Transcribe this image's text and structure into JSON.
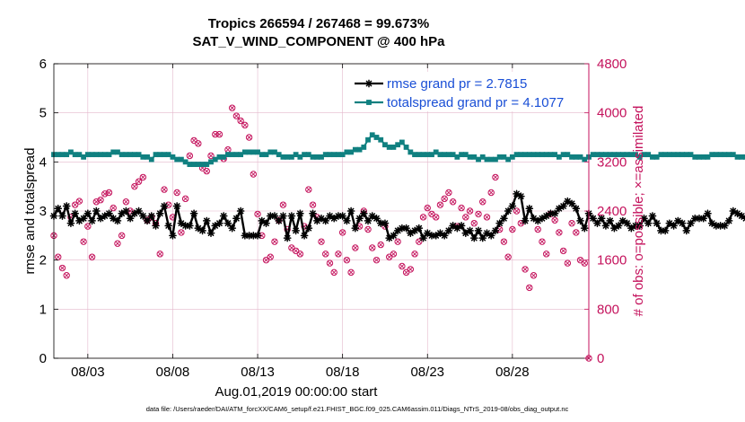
{
  "chart_data": {
    "type": "line",
    "title": [
      "Tropics 266594 / 267468 = 99.673%",
      "SAT_V_WIND_COMPONENT @ 400 hPa"
    ],
    "xlabel": "Aug.01,2019 00:00:00 start",
    "ylabel": "rmse and totalspread",
    "ylabel_right": "# of obs: o=possible; ×=assimilated",
    "footer": "data file: /Users/raeder/DAI/ATM_forcXX/CAM6_setup/f.e21.FHIST_BGC.f09_025.CAM6assim.011/Diags_NTrS_2019-08/obs_diag_output.nc",
    "xlim": [
      1.0,
      32.5
    ],
    "ylim": [
      0,
      6
    ],
    "ylim_right": [
      0,
      4800
    ],
    "yticks": [
      "0",
      "1",
      "2",
      "3",
      "4",
      "5",
      "6"
    ],
    "yticks_right": [
      "0",
      "800",
      "1600",
      "2400",
      "3200",
      "4000",
      "4800"
    ],
    "xticks": [
      {
        "x": 3,
        "label": "08/03"
      },
      {
        "x": 8,
        "label": "08/08"
      },
      {
        "x": 13,
        "label": "08/13"
      },
      {
        "x": 18,
        "label": "08/18"
      },
      {
        "x": 23,
        "label": "08/23"
      },
      {
        "x": 28,
        "label": "08/28"
      }
    ],
    "grid": true,
    "legend_position": "top-right",
    "colors": {
      "rmse": "#000000",
      "spread": "#108080",
      "obs": "#c4125c",
      "grid": "#e4b8cc",
      "axis_left": "#000000",
      "axis_right": "#c4125c",
      "legend_text": "#1a4fd6"
    },
    "x_start": 1.0,
    "x_step": 0.25,
    "series": [
      {
        "name": "rmse grand pr = 2.7815",
        "color": "#000000",
        "marker": "asterisk",
        "values": [
          2.9,
          3.05,
          2.9,
          3.1,
          2.75,
          2.95,
          2.8,
          2.85,
          2.95,
          2.8,
          3.0,
          2.85,
          2.9,
          2.95,
          2.85,
          2.8,
          2.95,
          3.0,
          2.85,
          2.95,
          3.0,
          2.9,
          2.8,
          2.9,
          2.7,
          2.95,
          3.1,
          2.7,
          2.5,
          3.1,
          2.75,
          2.7,
          2.7,
          2.95,
          2.65,
          2.6,
          2.8,
          2.55,
          2.7,
          2.75,
          2.9,
          2.75,
          2.65,
          2.85,
          3.0,
          2.5,
          2.5,
          2.5,
          2.5,
          2.8,
          2.75,
          2.9,
          2.9,
          2.8,
          2.9,
          2.45,
          2.9,
          2.6,
          2.95,
          2.5,
          2.65,
          2.95,
          2.8,
          2.85,
          2.8,
          2.9,
          2.85,
          2.9,
          2.9,
          2.8,
          3.0,
          2.65,
          2.85,
          2.95,
          2.8,
          2.9,
          2.85,
          2.75,
          2.75,
          2.45,
          2.5,
          2.6,
          2.65,
          2.65,
          2.55,
          2.6,
          2.65,
          2.45,
          2.55,
          2.5,
          2.5,
          2.55,
          2.5,
          2.6,
          2.7,
          2.65,
          2.7,
          2.55,
          2.6,
          2.45,
          2.6,
          2.45,
          2.55,
          2.5,
          2.6,
          2.75,
          2.85,
          3.0,
          3.1,
          3.35,
          3.3,
          2.8,
          3.05,
          2.85,
          2.8,
          2.85,
          2.9,
          2.95,
          2.95,
          3.05,
          3.1,
          3.2,
          3.15,
          3.05,
          2.8,
          2.65,
          2.95,
          2.85,
          2.75,
          2.85,
          2.7,
          2.8,
          2.65,
          2.7,
          2.8,
          2.75,
          2.65,
          2.7,
          2.7,
          2.85,
          2.75,
          2.9,
          2.75,
          2.6,
          2.6,
          2.75,
          2.7,
          2.8,
          2.75,
          2.6,
          2.75,
          2.85,
          2.85,
          2.85,
          2.95,
          2.75,
          2.7,
          2.7,
          2.7,
          2.8,
          3.0,
          2.95,
          2.9,
          2.85,
          2.75,
          2.65,
          2.7,
          2.6
        ]
      },
      {
        "name": "totalspread grand pr = 4.1077",
        "color": "#108080",
        "marker": "square",
        "values": [
          4.15,
          4.15,
          4.15,
          4.15,
          4.2,
          4.15,
          4.15,
          4.1,
          4.15,
          4.15,
          4.15,
          4.15,
          4.15,
          4.15,
          4.2,
          4.2,
          4.15,
          4.15,
          4.15,
          4.15,
          4.15,
          4.1,
          4.1,
          4.05,
          4.15,
          4.15,
          4.15,
          4.15,
          4.1,
          4.05,
          4.05,
          4.0,
          3.95,
          3.95,
          3.95,
          3.95,
          3.95,
          4.0,
          4.05,
          4.1,
          4.1,
          4.15,
          4.15,
          4.15,
          4.15,
          4.2,
          4.2,
          4.2,
          4.2,
          4.15,
          4.15,
          4.2,
          4.2,
          4.15,
          4.1,
          4.1,
          4.1,
          4.15,
          4.1,
          4.15,
          4.15,
          4.1,
          4.1,
          4.1,
          4.15,
          4.15,
          4.15,
          4.15,
          4.15,
          4.2,
          4.2,
          4.25,
          4.25,
          4.3,
          4.45,
          4.55,
          4.5,
          4.45,
          4.35,
          4.3,
          4.3,
          4.35,
          4.4,
          4.3,
          4.2,
          4.15,
          4.15,
          4.15,
          4.15,
          4.15,
          4.2,
          4.15,
          4.15,
          4.15,
          4.15,
          4.1,
          4.15,
          4.15,
          4.1,
          4.1,
          4.05,
          4.1,
          4.05,
          4.05,
          4.05,
          4.1,
          4.1,
          4.05,
          4.1,
          4.15,
          4.15,
          4.15,
          4.15,
          4.15,
          4.15,
          4.15,
          4.15,
          4.15,
          4.15,
          4.1,
          4.15,
          4.15,
          4.1,
          4.1,
          4.1,
          4.05,
          4.1,
          4.15,
          4.15,
          4.15,
          4.15,
          4.15,
          4.15,
          4.15,
          4.15,
          4.15,
          4.15,
          4.15,
          4.1,
          4.15,
          4.15,
          4.1,
          4.1,
          4.15,
          4.15,
          4.15,
          4.15,
          4.15,
          4.15,
          4.15,
          4.15,
          4.1,
          4.1,
          4.1,
          4.1,
          4.15,
          4.15,
          4.15,
          4.15,
          4.15,
          4.15,
          4.1,
          4.1,
          4.1,
          4.1,
          4.15,
          4.15,
          4.15,
          4.1,
          4.15,
          4.15,
          4.15,
          4.15,
          4.1
        ]
      }
    ],
    "obs_counts": {
      "name": "# of obs (right axis)",
      "marker": "circle-cross",
      "points": [
        [
          1.0,
          2000
        ],
        [
          1.25,
          1650
        ],
        [
          1.5,
          1470
        ],
        [
          1.75,
          1350
        ],
        [
          2.0,
          2300
        ],
        [
          2.25,
          2500
        ],
        [
          2.5,
          2560
        ],
        [
          2.75,
          1900
        ],
        [
          3.0,
          2150
        ],
        [
          3.25,
          1650
        ],
        [
          3.5,
          2550
        ],
        [
          3.75,
          2580
        ],
        [
          4.0,
          2680
        ],
        [
          4.25,
          2700
        ],
        [
          4.5,
          2450
        ],
        [
          4.75,
          1870
        ],
        [
          5.0,
          2000
        ],
        [
          5.25,
          2550
        ],
        [
          5.5,
          2400
        ],
        [
          5.75,
          2800
        ],
        [
          6.0,
          2880
        ],
        [
          6.25,
          2950
        ],
        [
          6.5,
          2250
        ],
        [
          6.75,
          2300
        ],
        [
          7.0,
          2200
        ],
        [
          7.25,
          1700
        ],
        [
          7.5,
          2750
        ],
        [
          7.75,
          2500
        ],
        [
          8.0,
          2300
        ],
        [
          8.25,
          2700
        ],
        [
          8.5,
          2050
        ],
        [
          8.75,
          2600
        ],
        [
          9.0,
          3300
        ],
        [
          9.25,
          3550
        ],
        [
          9.5,
          3500
        ],
        [
          9.75,
          3100
        ],
        [
          10.0,
          3050
        ],
        [
          10.25,
          3300
        ],
        [
          10.5,
          3650
        ],
        [
          10.75,
          3650
        ],
        [
          11.0,
          3250
        ],
        [
          11.25,
          3400
        ],
        [
          11.5,
          4080
        ],
        [
          11.75,
          3950
        ],
        [
          12.0,
          3870
        ],
        [
          12.25,
          3800
        ],
        [
          12.5,
          3600
        ],
        [
          12.75,
          3000
        ],
        [
          13.0,
          2350
        ],
        [
          13.25,
          2000
        ],
        [
          13.5,
          1600
        ],
        [
          13.75,
          1650
        ],
        [
          14.0,
          1900
        ],
        [
          14.25,
          2250
        ],
        [
          14.5,
          2500
        ],
        [
          14.75,
          2100
        ],
        [
          15.0,
          1800
        ],
        [
          15.25,
          1750
        ],
        [
          15.5,
          1700
        ],
        [
          15.75,
          2150
        ],
        [
          16.0,
          2750
        ],
        [
          16.25,
          2500
        ],
        [
          16.5,
          2300
        ],
        [
          16.75,
          1900
        ],
        [
          17.0,
          1700
        ],
        [
          17.25,
          1550
        ],
        [
          17.5,
          1400
        ],
        [
          17.75,
          1700
        ],
        [
          18.0,
          2050
        ],
        [
          18.25,
          1600
        ],
        [
          18.5,
          1400
        ],
        [
          18.75,
          1800
        ],
        [
          19.0,
          2150
        ],
        [
          19.25,
          2400
        ],
        [
          19.5,
          2100
        ],
        [
          19.75,
          1800
        ],
        [
          20.0,
          1600
        ],
        [
          20.25,
          1850
        ],
        [
          20.5,
          2150
        ],
        [
          20.75,
          1650
        ],
        [
          21.0,
          1700
        ],
        [
          21.25,
          1900
        ],
        [
          21.5,
          1500
        ],
        [
          21.75,
          1400
        ],
        [
          22.0,
          1450
        ],
        [
          22.25,
          1700
        ],
        [
          22.5,
          1900
        ],
        [
          22.75,
          2300
        ],
        [
          23.0,
          2450
        ],
        [
          23.25,
          2350
        ],
        [
          23.5,
          2300
        ],
        [
          23.75,
          2500
        ],
        [
          24.0,
          2600
        ],
        [
          24.25,
          2700
        ],
        [
          24.5,
          2550
        ],
        [
          24.75,
          2150
        ],
        [
          25.0,
          2450
        ],
        [
          25.25,
          2300
        ],
        [
          25.5,
          2400
        ],
        [
          25.75,
          2200
        ],
        [
          26.0,
          2350
        ],
        [
          26.25,
          2550
        ],
        [
          26.5,
          2300
        ],
        [
          26.75,
          2700
        ],
        [
          27.0,
          2950
        ],
        [
          27.25,
          2100
        ],
        [
          27.5,
          1900
        ],
        [
          27.75,
          1650
        ],
        [
          28.0,
          2100
        ],
        [
          28.25,
          2400
        ],
        [
          28.5,
          2200
        ],
        [
          28.75,
          1450
        ],
        [
          29.0,
          1150
        ],
        [
          29.25,
          1350
        ],
        [
          29.5,
          2100
        ],
        [
          29.75,
          1900
        ],
        [
          30.0,
          1700
        ],
        [
          30.25,
          2350
        ],
        [
          30.5,
          2250
        ],
        [
          30.75,
          2050
        ],
        [
          31.0,
          1750
        ],
        [
          31.25,
          1550
        ],
        [
          31.5,
          2200
        ],
        [
          31.75,
          2050
        ],
        [
          32.0,
          1600
        ],
        [
          32.25,
          1550
        ],
        [
          32.5,
          0
        ]
      ]
    }
  }
}
